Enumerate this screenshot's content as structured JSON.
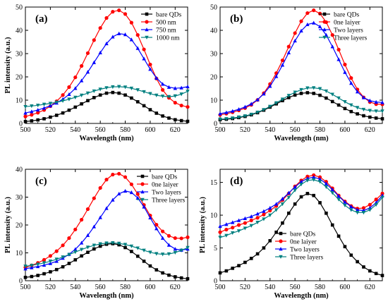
{
  "chart_data": [
    {
      "type": "line",
      "panel_label": "(a)",
      "xlabel": "Wavelength (nm)",
      "ylabel": "PL intensity (a.u.)",
      "xlim": [
        500,
        630
      ],
      "ylim": [
        0,
        50
      ],
      "x_ticks": [
        500,
        520,
        540,
        560,
        580,
        600,
        620
      ],
      "y_ticks": [
        0,
        10,
        20,
        30,
        40,
        50
      ],
      "legend": "top-right",
      "x": [
        500,
        505,
        510,
        515,
        520,
        525,
        530,
        535,
        540,
        545,
        550,
        555,
        560,
        565,
        570,
        575,
        580,
        585,
        590,
        595,
        600,
        605,
        610,
        615,
        620,
        625,
        630
      ],
      "series": [
        {
          "name": "bare QDs",
          "color": "#000000",
          "marker": "square",
          "values": [
            0.8,
            1.1,
            1.5,
            2.0,
            2.7,
            3.5,
            4.5,
            5.7,
            7.0,
            8.4,
            9.8,
            11.1,
            12.2,
            13.0,
            13.3,
            13.0,
            12.2,
            10.9,
            9.3,
            7.6,
            5.9,
            4.4,
            3.2,
            2.3,
            1.6,
            1.2,
            0.9
          ]
        },
        {
          "name": "500 nm",
          "color": "#ff0000",
          "marker": "circle",
          "values": [
            3.0,
            3.7,
            4.6,
            5.8,
            7.4,
            9.5,
            12.2,
            15.6,
            19.8,
            24.7,
            30.2,
            35.8,
            41.0,
            45.3,
            48.0,
            48.6,
            47.0,
            43.3,
            38.0,
            31.8,
            25.3,
            19.3,
            14.4,
            11.0,
            8.9,
            7.7,
            7.1
          ]
        },
        {
          "name": "750 nm",
          "color": "#0000ff",
          "marker": "triangle-up",
          "values": [
            4.5,
            5.1,
            5.8,
            6.6,
            7.6,
            8.8,
            10.4,
            12.5,
            15.1,
            18.4,
            22.1,
            26.2,
            30.4,
            34.3,
            37.2,
            38.6,
            38.2,
            36.0,
            32.3,
            27.8,
            23.3,
            19.5,
            16.9,
            15.6,
            15.1,
            15.3,
            15.8
          ]
        },
        {
          "name": "1000 nm",
          "color": "#008080",
          "marker": "triangle-down",
          "values": [
            7.2,
            7.5,
            7.8,
            8.2,
            8.6,
            9.1,
            9.7,
            10.4,
            11.2,
            12.1,
            13.0,
            13.9,
            14.7,
            15.3,
            15.7,
            15.8,
            15.6,
            15.1,
            14.4,
            13.6,
            12.8,
            12.1,
            11.7,
            11.5,
            11.8,
            12.6,
            13.8
          ]
        }
      ]
    },
    {
      "type": "line",
      "panel_label": "(b)",
      "xlabel": "Wavelength (nm)",
      "ylabel": "",
      "xlim": [
        500,
        630
      ],
      "ylim": [
        0,
        50
      ],
      "x_ticks": [
        500,
        520,
        540,
        560,
        580,
        600,
        620
      ],
      "y_ticks": [
        0,
        10,
        20,
        30,
        40,
        50
      ],
      "legend": "top-right",
      "x": [
        500,
        505,
        510,
        515,
        520,
        525,
        530,
        535,
        540,
        545,
        550,
        555,
        560,
        565,
        570,
        575,
        580,
        585,
        590,
        595,
        600,
        605,
        610,
        615,
        620,
        625,
        630
      ],
      "series": [
        {
          "name": "bare QDs",
          "color": "#000000",
          "marker": "square",
          "values": [
            1.6,
            1.8,
            2.1,
            2.5,
            3.0,
            3.7,
            4.6,
            5.7,
            7.0,
            8.4,
            9.8,
            11.1,
            12.2,
            12.9,
            13.2,
            12.9,
            12.1,
            10.9,
            9.4,
            7.9,
            6.4,
            5.1,
            4.1,
            3.3,
            2.7,
            2.3,
            2.0
          ]
        },
        {
          "name": "0ne laiyer",
          "color": "#ff0000",
          "marker": "circle",
          "values": [
            3.7,
            4.2,
            4.8,
            5.6,
            6.6,
            8.0,
            10.1,
            13.0,
            16.9,
            21.6,
            27.1,
            33.0,
            38.8,
            43.9,
            47.4,
            48.6,
            47.2,
            43.5,
            38.0,
            31.7,
            25.3,
            19.5,
            14.6,
            11.2,
            9.2,
            8.3,
            8.2
          ]
        },
        {
          "name": "Two layers",
          "color": "#0000ff",
          "marker": "triangle-up",
          "values": [
            4.2,
            4.7,
            5.3,
            6.1,
            7.1,
            8.4,
            10.2,
            12.7,
            16.0,
            20.2,
            25.1,
            30.4,
            35.5,
            39.8,
            42.5,
            43.2,
            41.6,
            38.0,
            33.0,
            27.5,
            22.0,
            17.3,
            13.6,
            11.1,
            9.8,
            9.2,
            9.0
          ]
        },
        {
          "name": "Three layers",
          "color": "#008080",
          "marker": "triangle-down",
          "values": [
            1.8,
            2.0,
            2.3,
            2.7,
            3.2,
            3.9,
            4.8,
            5.9,
            7.3,
            8.8,
            10.4,
            12.0,
            13.4,
            14.5,
            15.2,
            15.3,
            14.9,
            13.9,
            12.5,
            10.9,
            9.3,
            7.9,
            6.8,
            6.0,
            5.5,
            5.3,
            5.3
          ]
        }
      ]
    },
    {
      "type": "line",
      "panel_label": "(c)",
      "xlabel": "Wavelength (nm)",
      "ylabel": "PL intensity (a.u.)",
      "xlim": [
        500,
        630
      ],
      "ylim": [
        0,
        40
      ],
      "x_ticks": [
        500,
        520,
        540,
        560,
        580,
        600,
        620
      ],
      "y_ticks": [
        0,
        10,
        20,
        30,
        40
      ],
      "legend": "top-right",
      "x": [
        500,
        505,
        510,
        515,
        520,
        525,
        530,
        535,
        540,
        545,
        550,
        555,
        560,
        565,
        570,
        575,
        580,
        585,
        590,
        595,
        600,
        605,
        610,
        615,
        620,
        625,
        630
      ],
      "series": [
        {
          "name": "bare QDs",
          "color": "#000000",
          "marker": "square",
          "values": [
            1.2,
            1.5,
            1.9,
            2.5,
            3.2,
            4.0,
            5.0,
            6.2,
            7.5,
            8.9,
            10.2,
            11.4,
            12.4,
            13.1,
            13.3,
            12.9,
            11.9,
            10.5,
            8.8,
            7.0,
            5.3,
            3.9,
            2.8,
            2.0,
            1.4,
            1.0,
            0.7
          ]
        },
        {
          "name": "0ne laiyer",
          "color": "#ff0000",
          "marker": "circle",
          "values": [
            4.8,
            5.5,
            6.4,
            7.5,
            8.9,
            10.6,
            12.7,
            15.3,
            18.4,
            21.9,
            25.7,
            29.6,
            33.3,
            36.3,
            38.1,
            38.4,
            37.2,
            34.6,
            31.1,
            27.2,
            23.4,
            20.1,
            17.7,
            16.1,
            15.3,
            15.2,
            15.6
          ]
        },
        {
          "name": "Two layers",
          "color": "#0000ff",
          "marker": "triangle-up",
          "values": [
            4.3,
            4.7,
            5.1,
            5.6,
            6.2,
            7.0,
            8.1,
            9.5,
            11.3,
            13.6,
            16.3,
            19.4,
            22.7,
            26.0,
            29.0,
            31.2,
            32.2,
            31.7,
            29.7,
            26.5,
            22.6,
            18.7,
            15.3,
            12.8,
            11.4,
            11.0,
            11.4
          ]
        },
        {
          "name": "Three layers",
          "color": "#008080",
          "marker": "triangle-down",
          "values": [
            5.2,
            5.5,
            5.9,
            6.4,
            7.0,
            7.7,
            8.5,
            9.4,
            10.3,
            11.2,
            12.0,
            12.7,
            13.2,
            13.5,
            13.6,
            13.4,
            13.0,
            12.4,
            11.7,
            10.9,
            10.2,
            9.7,
            9.5,
            9.6,
            10.1,
            10.9,
            11.9
          ]
        }
      ]
    },
    {
      "type": "line",
      "panel_label": "(d)",
      "xlabel": "Wavelength (nm)",
      "ylabel": "PL intensity (a.u.)",
      "xlim": [
        500,
        630
      ],
      "ylim": [
        0,
        17
      ],
      "x_ticks": [
        500,
        520,
        540,
        560,
        580,
        600,
        620
      ],
      "y_ticks": [
        0,
        5,
        10,
        15
      ],
      "legend": "bottom-left",
      "x": [
        500,
        505,
        510,
        515,
        520,
        525,
        530,
        535,
        540,
        545,
        550,
        555,
        560,
        565,
        570,
        575,
        580,
        585,
        590,
        595,
        600,
        605,
        610,
        615,
        620,
        625,
        630
      ],
      "series": [
        {
          "name": "bare QDs",
          "color": "#000000",
          "marker": "square",
          "values": [
            1.2,
            1.5,
            1.9,
            2.3,
            2.8,
            3.4,
            4.1,
            5.0,
            6.1,
            7.4,
            8.8,
            10.3,
            11.7,
            12.8,
            13.3,
            13.0,
            11.9,
            10.3,
            8.5,
            6.8,
            5.2,
            3.9,
            2.9,
            2.1,
            1.5,
            1.1,
            0.8
          ]
        },
        {
          "name": "0ne laiyer",
          "color": "#ff0000",
          "marker": "circle",
          "values": [
            7.4,
            7.8,
            8.1,
            8.5,
            8.8,
            9.2,
            9.6,
            10.1,
            10.7,
            11.4,
            12.3,
            13.3,
            14.4,
            15.3,
            15.9,
            16.1,
            15.8,
            15.1,
            14.1,
            13.0,
            12.1,
            11.4,
            11.0,
            11.1,
            11.6,
            12.4,
            13.3
          ]
        },
        {
          "name": "Two layers",
          "color": "#0000ff",
          "marker": "triangle-up",
          "values": [
            8.3,
            8.6,
            8.9,
            9.2,
            9.5,
            9.8,
            10.2,
            10.6,
            11.1,
            11.7,
            12.5,
            13.4,
            14.3,
            15.1,
            15.6,
            15.8,
            15.5,
            14.8,
            13.9,
            12.9,
            12.0,
            11.3,
            10.8,
            10.7,
            11.1,
            11.9,
            13.0
          ]
        },
        {
          "name": "Three layers",
          "color": "#008080",
          "marker": "triangle-down",
          "values": [
            6.6,
            6.9,
            7.3,
            7.6,
            8.0,
            8.4,
            8.9,
            9.4,
            10.0,
            10.8,
            11.7,
            12.7,
            13.8,
            14.7,
            15.3,
            15.4,
            15.1,
            14.3,
            13.4,
            12.4,
            11.5,
            10.8,
            10.4,
            10.4,
            10.8,
            11.6,
            12.7
          ]
        }
      ]
    }
  ]
}
